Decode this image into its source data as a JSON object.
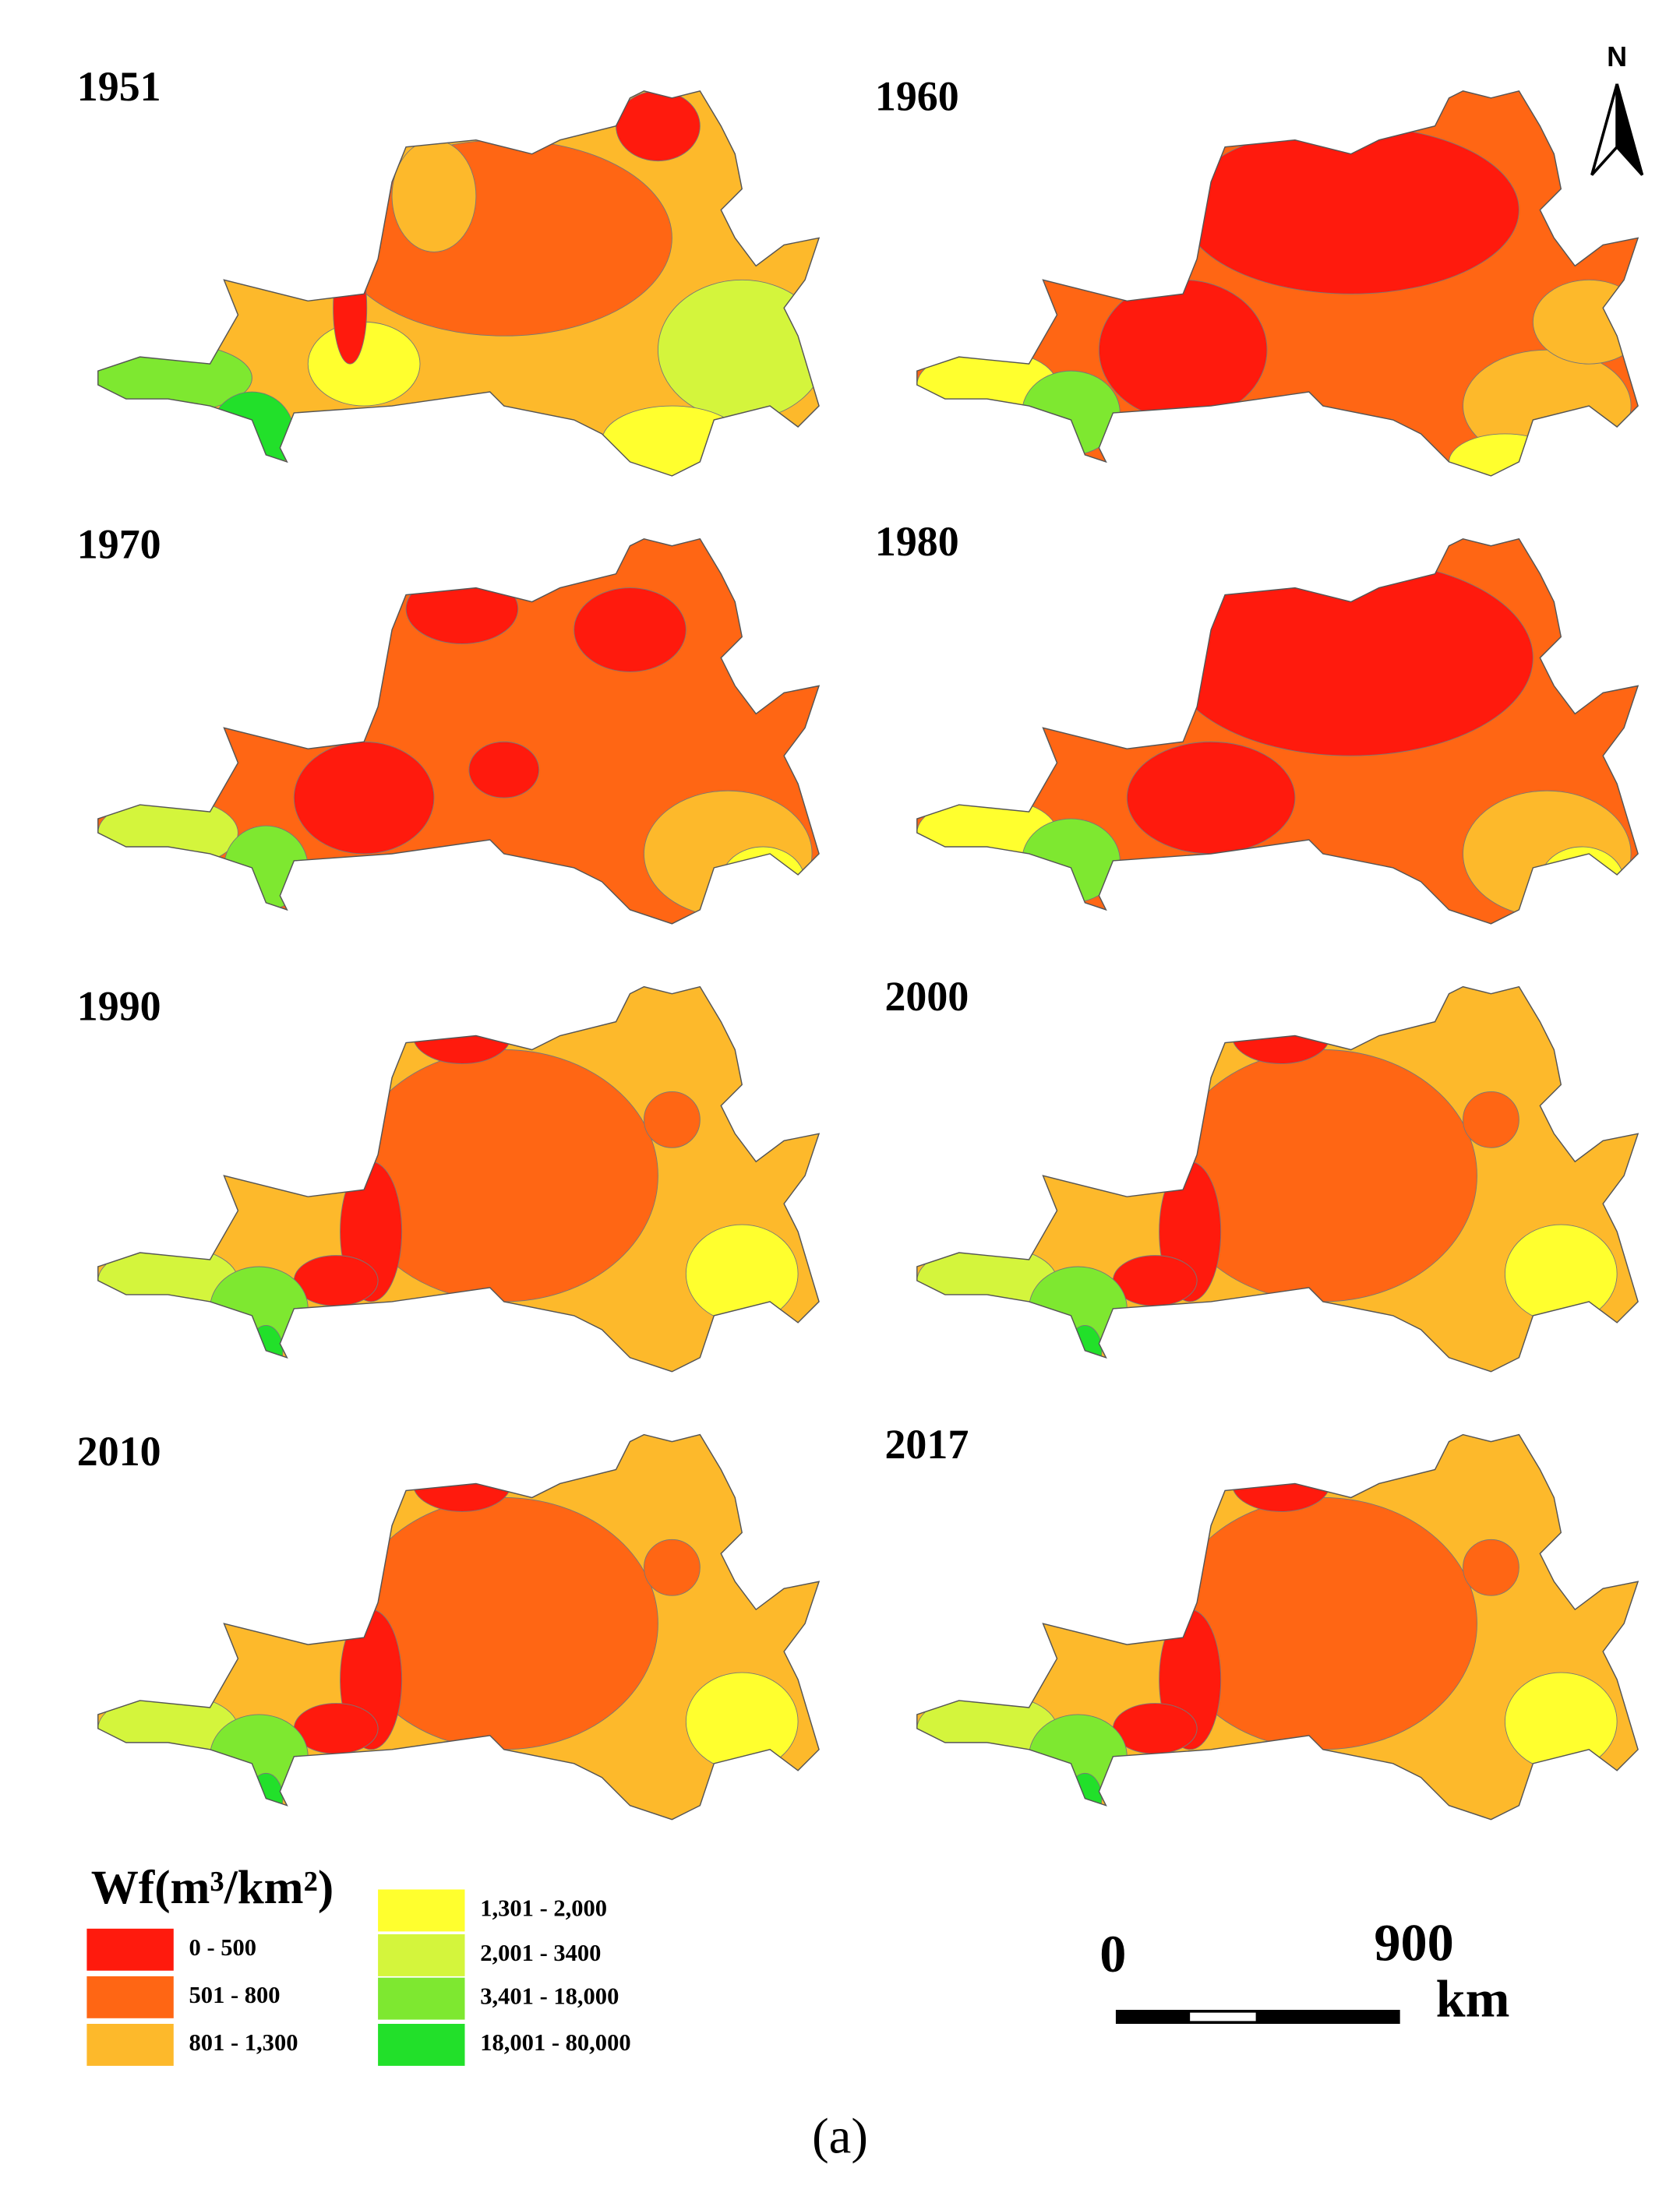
{
  "figure": {
    "panels": [
      {
        "year": "1951"
      },
      {
        "year": "1960"
      },
      {
        "year": "1970"
      },
      {
        "year": "1980"
      },
      {
        "year": "1990"
      },
      {
        "year": "2000"
      },
      {
        "year": "2010"
      },
      {
        "year": "2017"
      }
    ],
    "legend": {
      "title": "Wf(m³/km²)",
      "items": [
        {
          "label": "0 - 500",
          "color": "#ff1a0d"
        },
        {
          "label": "501 - 800",
          "color": "#ff6614"
        },
        {
          "label": "801 - 1,300",
          "color": "#fdb92b"
        },
        {
          "label": "1,301 - 2,000",
          "color": "#ffff2e"
        },
        {
          "label": "2,001 - 3400",
          "color": "#d4f53c"
        },
        {
          "label": "3,401 - 18,000",
          "color": "#7ee830"
        },
        {
          "label": "18,001 - 80,000",
          "color": "#22e02a"
        }
      ]
    },
    "scale_bar": {
      "start": "0",
      "end": "900",
      "unit": "km"
    },
    "north": "N",
    "caption": "(a)"
  }
}
